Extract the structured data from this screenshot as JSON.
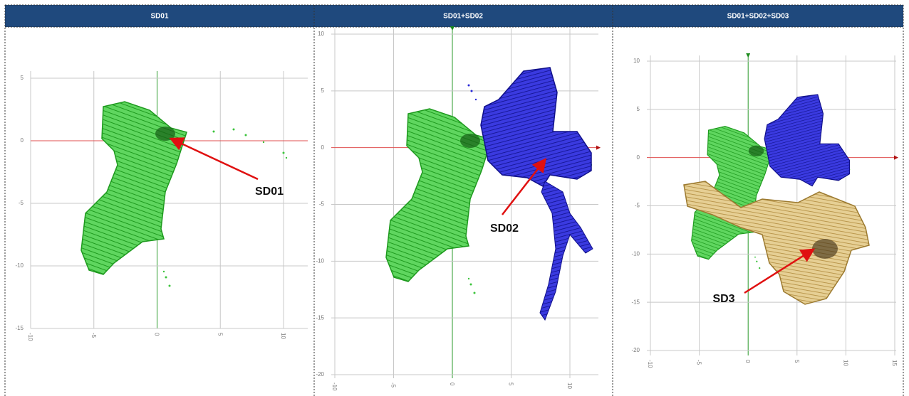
{
  "panels": [
    {
      "header": "SD01",
      "xticks": [
        -10,
        -5,
        0,
        5,
        10
      ],
      "yticks": [
        5,
        0,
        -5,
        -10,
        -15
      ],
      "annotation": "SD01"
    },
    {
      "header": "SD01+SD02",
      "xticks": [
        -10,
        -5,
        0,
        5,
        10
      ],
      "yticks": [
        10,
        5,
        0,
        -5,
        -10,
        -15,
        -20
      ],
      "annotation": "SD02"
    },
    {
      "header": "SD01+SD02+SD03",
      "xticks": [
        -10,
        -5,
        0,
        5,
        10,
        15
      ],
      "yticks": [
        10,
        5,
        0,
        -5,
        -10,
        -15,
        -20
      ],
      "annotation": "SD3"
    }
  ]
}
